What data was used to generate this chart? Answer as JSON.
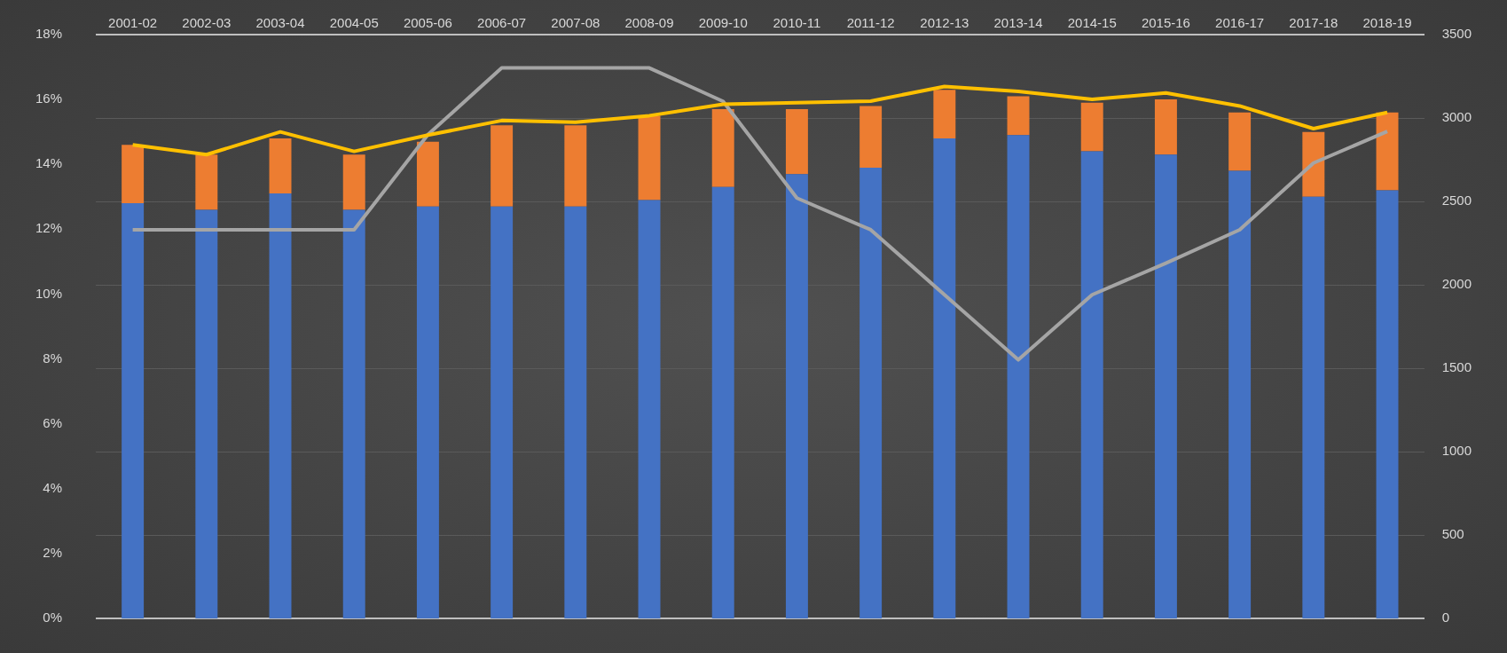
{
  "chart_data": {
    "type": "bar",
    "stacked": true,
    "grid": "y",
    "categories": [
      "2001-02",
      "2002-03",
      "2003-04",
      "2004-05",
      "2005-06",
      "2006-07",
      "2007-08",
      "2008-09",
      "2009-10",
      "2010-11",
      "2011-12",
      "2012-13",
      "2013-14",
      "2014-15",
      "2015-16",
      "2016-17",
      "2017-18",
      "2018-19"
    ],
    "series": [
      {
        "color": "#4472c4",
        "values": [
          12.8,
          12.6,
          13.1,
          12.6,
          12.7,
          12.7,
          12.7,
          12.9,
          13.3,
          13.7,
          13.9,
          14.8,
          14.9,
          14.4,
          14.3,
          13.8,
          13.0,
          13.2
        ]
      },
      {
        "color": "#ed7d31",
        "values": [
          1.8,
          1.7,
          1.7,
          1.7,
          2.0,
          2.5,
          2.5,
          2.6,
          2.4,
          2.0,
          1.9,
          1.5,
          1.2,
          1.5,
          1.7,
          1.8,
          2.0,
          2.4
        ]
      },
      {
        "type": "line",
        "color": "#ffc000",
        "values": [
          14.6,
          14.3,
          15.0,
          14.4,
          14.9,
          15.35,
          15.3,
          15.5,
          15.85,
          15.9,
          15.95,
          16.4,
          16.25,
          16.0,
          16.2,
          15.8,
          15.1,
          15.6
        ]
      },
      {
        "type": "line",
        "axis": "y2",
        "color": "#a5a5a5",
        "values": [
          2330,
          2330,
          2330,
          2330,
          2900,
          3300,
          3300,
          3300,
          3100,
          2520,
          2330,
          1940,
          1550,
          1940,
          2130,
          2330,
          2730,
          2920
        ]
      }
    ],
    "ylim": [
      0,
      18
    ],
    "yticks": [
      {
        "value": 0,
        "label": "0%"
      },
      {
        "value": 2,
        "label": "2%"
      },
      {
        "value": 4,
        "label": "4%"
      },
      {
        "value": 6,
        "label": "6%"
      },
      {
        "value": 8,
        "label": "8%"
      },
      {
        "value": 10,
        "label": "10%"
      },
      {
        "value": 12,
        "label": "12%"
      },
      {
        "value": 14,
        "label": "14%"
      },
      {
        "value": 16,
        "label": "16%"
      },
      {
        "value": 18,
        "label": "18%"
      }
    ],
    "y2lim": [
      0,
      3500
    ],
    "y2ticks": [
      0,
      500,
      1000,
      1500,
      2000,
      2500,
      3000,
      3500
    ],
    "legend": false,
    "marker": "none"
  }
}
